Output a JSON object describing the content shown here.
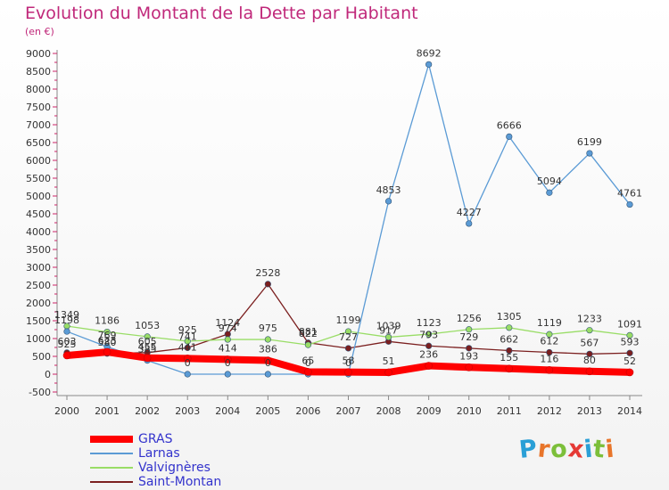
{
  "title": "Evolution du Montant de la Dette par Habitant",
  "subtitle": "(en €)",
  "logo_text": "Proxiti",
  "chart_data": {
    "type": "line",
    "title": "Evolution du Montant de la Dette par Habitant",
    "subtitle": "(en €)",
    "x": [
      2000,
      2001,
      2002,
      2003,
      2004,
      2005,
      2006,
      2007,
      2008,
      2009,
      2010,
      2011,
      2012,
      2013,
      2014
    ],
    "ylim": [
      -500,
      9000
    ],
    "yticks": [
      -500,
      0,
      500,
      1000,
      1500,
      2000,
      2500,
      3000,
      3500,
      4000,
      4500,
      5000,
      5500,
      6000,
      6500,
      7000,
      7500,
      8000,
      8500,
      9000
    ],
    "grid": false,
    "legend_position": "bottom-left",
    "series": [
      {
        "name": "GRAS",
        "color": "#ff0000",
        "values": [
          525,
          623,
          455,
          441,
          414,
          386,
          65,
          58,
          51,
          236,
          193,
          155,
          116,
          80,
          52
        ]
      },
      {
        "name": "Larnas",
        "color": "#5b9bd5",
        "values": [
          1198,
          769,
          385,
          0,
          0,
          0,
          0,
          0,
          4853,
          8692,
          4227,
          6666,
          5094,
          6199,
          4761
        ]
      },
      {
        "name": "Valvignères",
        "color": "#99dd66",
        "values": [
          1349,
          1186,
          1053,
          925,
          974,
          975,
          822,
          1199,
          1039,
          1123,
          1256,
          1305,
          1119,
          1233,
          1091
        ]
      },
      {
        "name": "Saint-Montan",
        "color": "#7b1f1f",
        "values": [
          603,
          580,
          605,
          741,
          1124,
          2528,
          881,
          727,
          917,
          793,
          729,
          662,
          612,
          567,
          593
        ]
      }
    ]
  }
}
